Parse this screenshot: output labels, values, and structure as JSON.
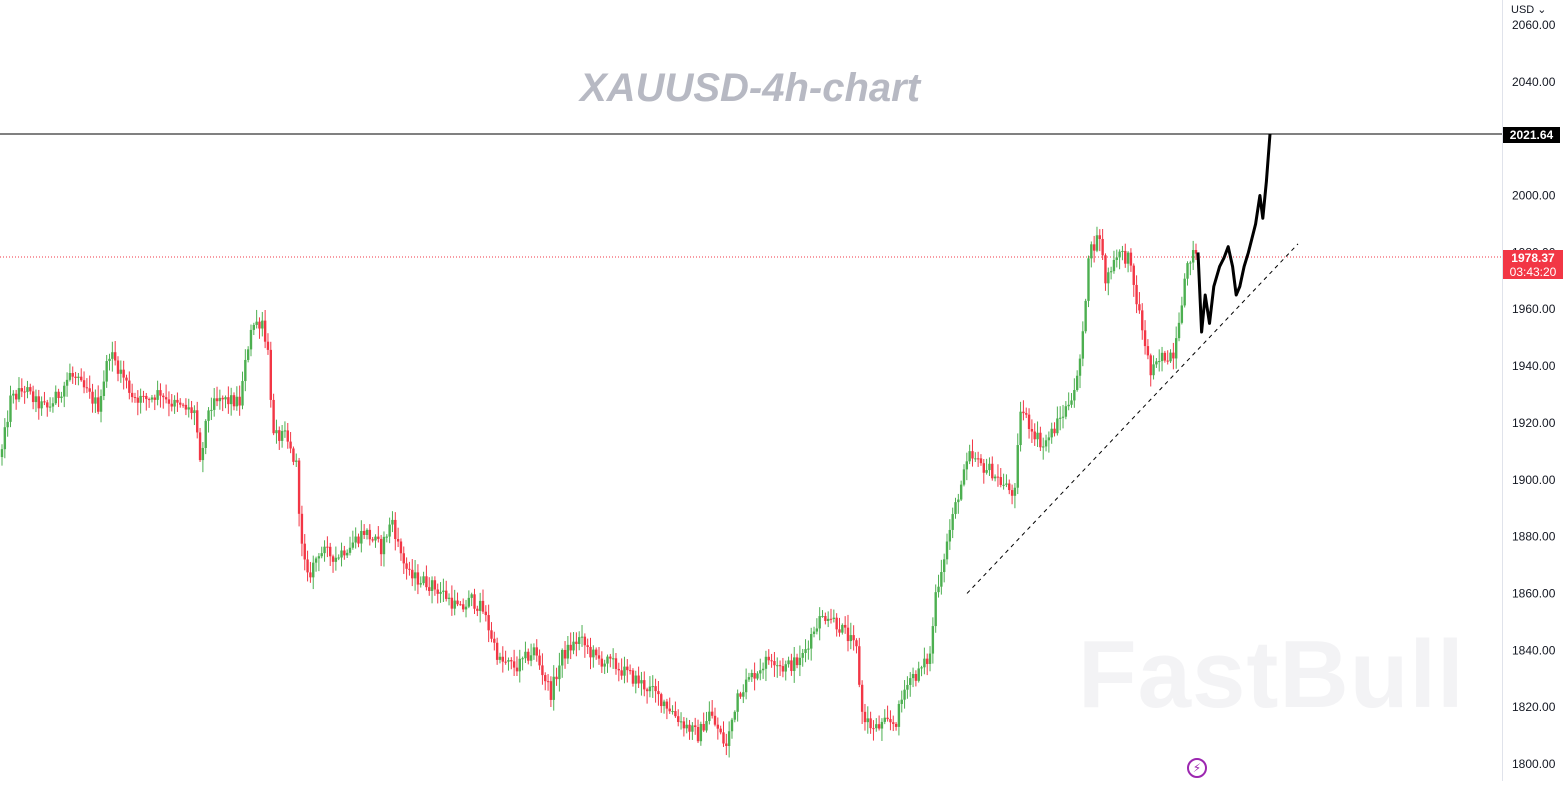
{
  "title": "XAUUSD-4h-chart",
  "currency": "USD",
  "watermark": "FastBull",
  "price_axis": {
    "labels": [
      "2060.00",
      "2040.00",
      "2021.64",
      "2000.00",
      "1980.00",
      "1960.00",
      "1940.00",
      "1920.00",
      "1900.00",
      "1880.00",
      "1860.00",
      "1840.00",
      "1820.00",
      "1800.00"
    ]
  },
  "markers": {
    "resistance_price": "2021.64",
    "last_price": "1978.37",
    "countdown": "03:43:20"
  },
  "colors": {
    "up": "#4caf50",
    "down": "#f23645",
    "forecast": "#000000",
    "resistance": "#000000",
    "last_price_line": "#f23645"
  },
  "chart_data": {
    "type": "candlestick",
    "symbol": "XAUUSD",
    "timeframe": "4h",
    "ylim": [
      1798,
      2065
    ],
    "y_ticks": [
      2060,
      2040,
      2000,
      1980,
      1960,
      1940,
      1920,
      1900,
      1880,
      1860,
      1840,
      1820,
      1800
    ],
    "horizontal_lines": [
      {
        "name": "resistance",
        "value": 2021.64,
        "style": "solid"
      },
      {
        "name": "last price",
        "value": 1978.37,
        "style": "dotted"
      }
    ],
    "trendline": {
      "style": "dashed",
      "from": [
        0,
        1860
      ],
      "to": [
        1,
        1983
      ]
    },
    "waypoints": [
      [
        0,
        1910
      ],
      [
        3,
        1928
      ],
      [
        8,
        1932
      ],
      [
        12,
        1927
      ],
      [
        16,
        1925
      ],
      [
        20,
        1930
      ],
      [
        24,
        1937
      ],
      [
        28,
        1933
      ],
      [
        34,
        1926
      ],
      [
        38,
        1945
      ],
      [
        42,
        1938
      ],
      [
        46,
        1930
      ],
      [
        50,
        1928
      ],
      [
        56,
        1931
      ],
      [
        60,
        1927
      ],
      [
        64,
        1925
      ],
      [
        68,
        1924
      ],
      [
        70,
        1905
      ],
      [
        73,
        1925
      ],
      [
        78,
        1928
      ],
      [
        84,
        1927
      ],
      [
        88,
        1954
      ],
      [
        92,
        1956
      ],
      [
        94,
        1945
      ],
      [
        96,
        1915
      ],
      [
        100,
        1915
      ],
      [
        104,
        1905
      ],
      [
        106,
        1876
      ],
      [
        108,
        1865
      ],
      [
        112,
        1875
      ],
      [
        118,
        1873
      ],
      [
        124,
        1878
      ],
      [
        128,
        1882
      ],
      [
        134,
        1876
      ],
      [
        138,
        1886
      ],
      [
        140,
        1877
      ],
      [
        144,
        1866
      ],
      [
        150,
        1864
      ],
      [
        156,
        1860
      ],
      [
        162,
        1854
      ],
      [
        166,
        1858
      ],
      [
        170,
        1854
      ],
      [
        176,
        1836
      ],
      [
        182,
        1834
      ],
      [
        188,
        1840
      ],
      [
        194,
        1825
      ],
      [
        198,
        1838
      ],
      [
        204,
        1844
      ],
      [
        210,
        1837
      ],
      [
        216,
        1835
      ],
      [
        222,
        1831
      ],
      [
        228,
        1827
      ],
      [
        234,
        1822
      ],
      [
        240,
        1815
      ],
      [
        246,
        1810
      ],
      [
        250,
        1818
      ],
      [
        256,
        1806
      ],
      [
        260,
        1825
      ],
      [
        266,
        1832
      ],
      [
        272,
        1838
      ],
      [
        276,
        1834
      ],
      [
        282,
        1836
      ],
      [
        288,
        1850
      ],
      [
        292,
        1853
      ],
      [
        298,
        1846
      ],
      [
        302,
        1840
      ],
      [
        304,
        1818
      ],
      [
        308,
        1812
      ],
      [
        312,
        1814
      ],
      [
        316,
        1815
      ],
      [
        320,
        1830
      ],
      [
        324,
        1832
      ],
      [
        328,
        1838
      ],
      [
        330,
        1860
      ],
      [
        334,
        1878
      ],
      [
        338,
        1895
      ],
      [
        342,
        1908
      ],
      [
        346,
        1905
      ],
      [
        350,
        1903
      ],
      [
        354,
        1898
      ],
      [
        358,
        1895
      ],
      [
        360,
        1925
      ],
      [
        364,
        1918
      ],
      [
        368,
        1912
      ],
      [
        372,
        1918
      ],
      [
        376,
        1925
      ],
      [
        380,
        1935
      ],
      [
        382,
        1950
      ],
      [
        384,
        1980
      ],
      [
        388,
        1986
      ],
      [
        390,
        1970
      ],
      [
        394,
        1980
      ],
      [
        398,
        1978
      ],
      [
        400,
        1968
      ],
      [
        404,
        1948
      ],
      [
        406,
        1937
      ],
      [
        410,
        1943
      ],
      [
        414,
        1945
      ],
      [
        418,
        1970
      ],
      [
        420,
        1978
      ],
      [
        422,
        1980
      ]
    ],
    "forecast": [
      [
        0,
        1980
      ],
      [
        0.05,
        1952
      ],
      [
        0.1,
        1965
      ],
      [
        0.16,
        1955
      ],
      [
        0.22,
        1968
      ],
      [
        0.3,
        1975
      ],
      [
        0.36,
        1978
      ],
      [
        0.42,
        1982
      ],
      [
        0.48,
        1975
      ],
      [
        0.53,
        1965
      ],
      [
        0.58,
        1968
      ],
      [
        0.64,
        1975
      ],
      [
        0.7,
        1980
      ],
      [
        0.75,
        1985
      ],
      [
        0.8,
        1990
      ],
      [
        0.86,
        2000
      ],
      [
        0.9,
        1992
      ],
      [
        0.95,
        2005
      ],
      [
        1.0,
        2021.64
      ]
    ]
  }
}
